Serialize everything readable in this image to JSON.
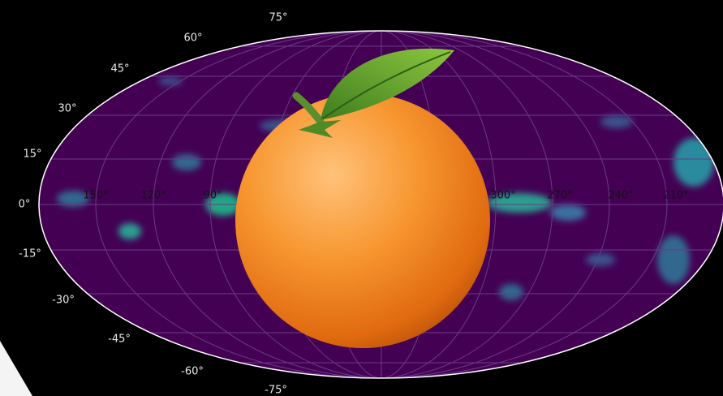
{
  "map": {
    "lat_labels": [
      "75°",
      "60°",
      "45°",
      "30°",
      "15°",
      "0°",
      "-15°",
      "-30°",
      "-45°",
      "-60°",
      "-75°"
    ],
    "lon_labels": [
      "150°",
      "120°",
      "90°",
      "300°",
      "270°",
      "240°",
      "210°"
    ]
  }
}
